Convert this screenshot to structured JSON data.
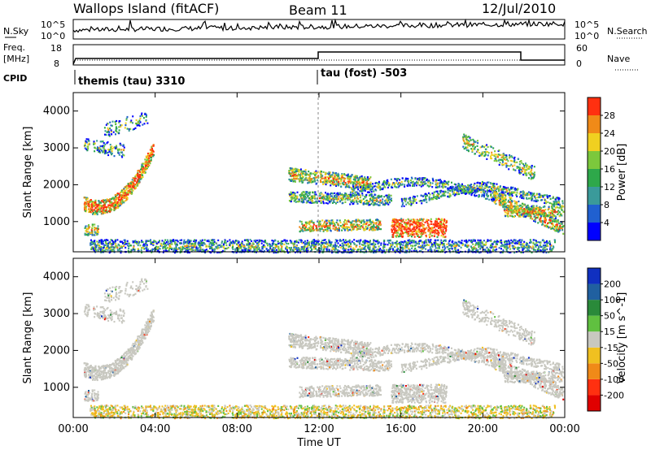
{
  "header": {
    "station_title": "Wallops Island (fitACF)",
    "beam_title": "Beam 11",
    "date_title": "12/Jul/2010"
  },
  "status_panel": {
    "nsky_label": "N.Sky",
    "nsearch_label": "N.Search",
    "sky_tick_top": "10^5",
    "sky_tick_bottom": "10^0",
    "search_tick_top": "10^5",
    "search_tick_bottom": "10^0",
    "freq_label": "Freq.",
    "freq_unit": "[MHz]",
    "freq_tick_top": "18",
    "freq_tick_bottom": "8",
    "nave_label": "Nave",
    "nave_tick_top": "60",
    "nave_tick_bottom": "0",
    "cpid_label": "CPID",
    "cpid_1": "themis (tau) 3310",
    "cpid_2": "tau (fost) -503"
  },
  "chart_data": [
    {
      "type": "heatmap",
      "title": "Power",
      "ylabel": "Slant Range [km]",
      "xlabel": "Time UT",
      "x_ticks": [
        "00:00",
        "04:00",
        "08:00",
        "12:00",
        "16:00",
        "20:00",
        "00:00"
      ],
      "y_ticks": [
        "1000",
        "2000",
        "3000",
        "4000"
      ],
      "ylim": [
        180,
        4500
      ],
      "colorbar_label": "Power [dB]",
      "colorbar_ticks": [
        "4",
        "8",
        "12",
        "16",
        "20",
        "24",
        "28"
      ],
      "colorbar_colors": [
        "#0000ff",
        "#2060d0",
        "#3a9a9a",
        "#2ea84a",
        "#7cc83c",
        "#f0d020",
        "#f08a18",
        "#ff3010"
      ]
    },
    {
      "type": "heatmap",
      "title": "Velocity",
      "ylabel": "Slant Range [km]",
      "xlabel": "Time UT",
      "x_ticks": [
        "00:00",
        "04:00",
        "08:00",
        "12:00",
        "16:00",
        "20:00",
        "00:00"
      ],
      "y_ticks": [
        "1000",
        "2000",
        "3000",
        "4000"
      ],
      "ylim": [
        180,
        4500
      ],
      "colorbar_label": "Velocity [m s^-1]",
      "colorbar_ticks": [
        "200",
        "100",
        "50",
        "15",
        "-15",
        "-50",
        "-100",
        "-200"
      ],
      "colorbar_colors": [
        "#1030c0",
        "#2060a0",
        "#2a8a3a",
        "#60c040",
        "#c8c8c0",
        "#f0c020",
        "#f08a18",
        "#ff3010",
        "#e00000"
      ]
    }
  ]
}
